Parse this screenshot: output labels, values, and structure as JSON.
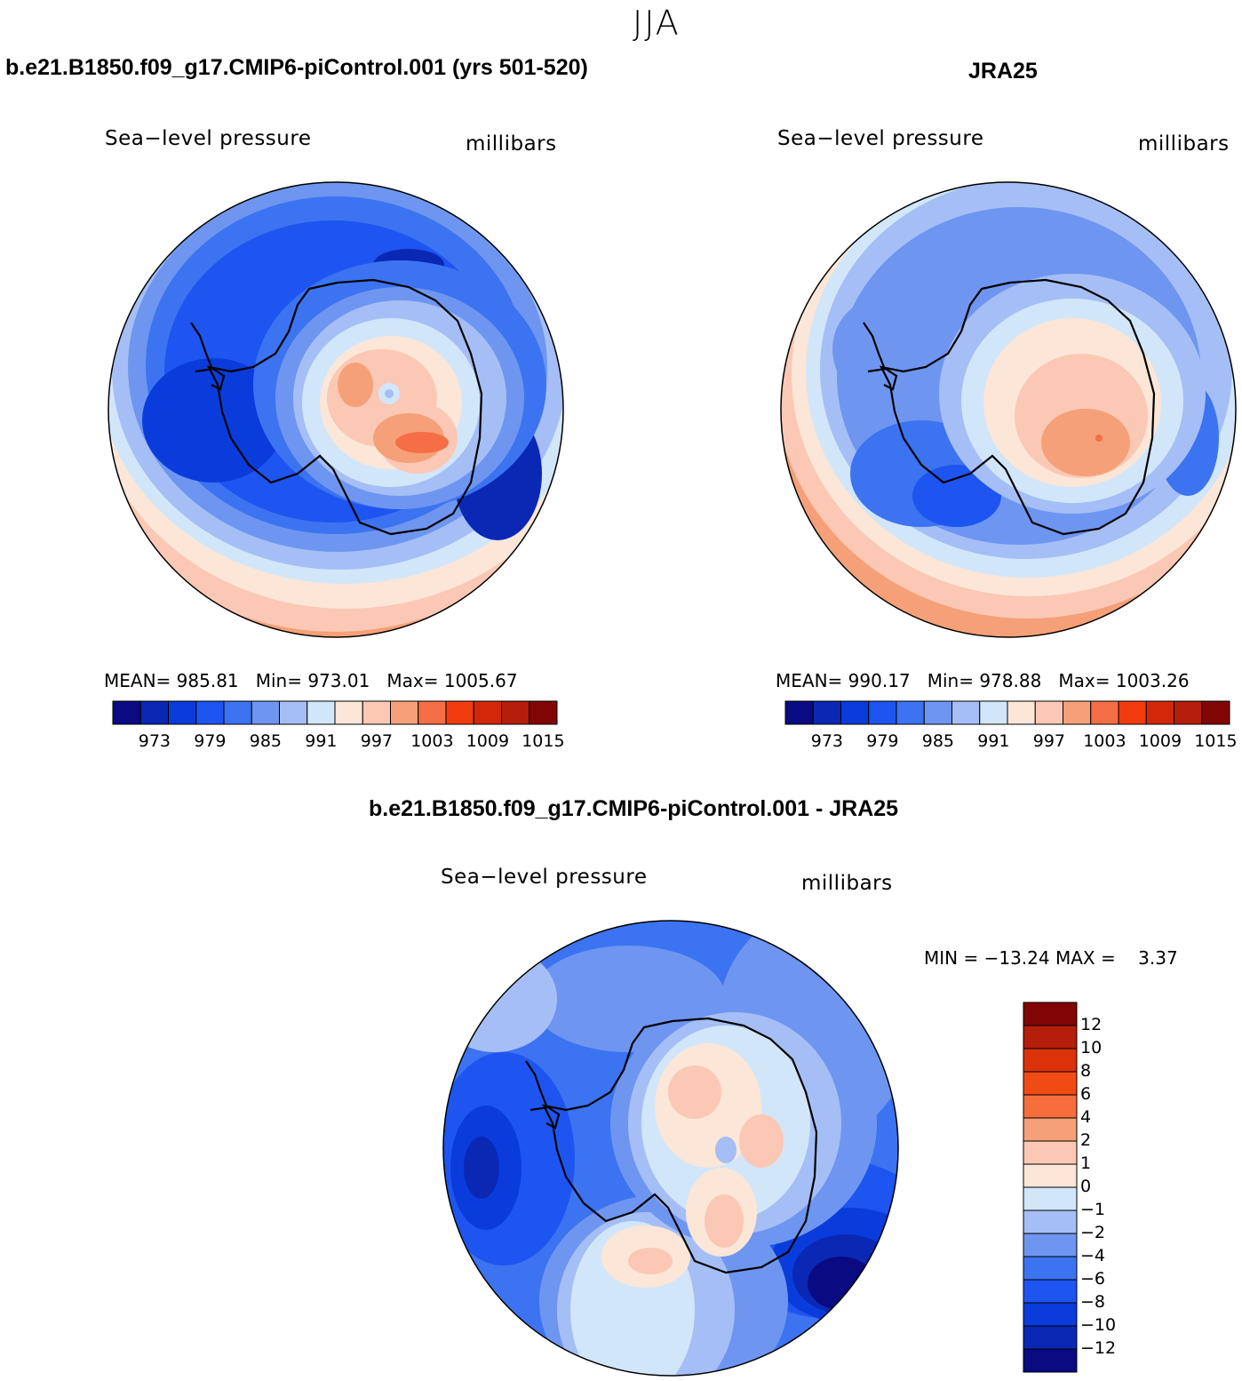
{
  "figure": {
    "title": "JJA"
  },
  "panels": [
    {
      "id": "model",
      "title": "b.e21.B1850.f09_g17.CMIP6-piControl.001 (yrs 501-520)",
      "left_label": "Sea−level pressure",
      "right_label": "millibars",
      "stats": {
        "mean_label": "MEAN=",
        "mean": "985.81",
        "min_label": "Min=",
        "min": "973.01",
        "max_label": "Max=",
        "max": "1005.67"
      },
      "colorbar_ticks": [
        "973",
        "979",
        "985",
        "991",
        "997",
        "1003",
        "1009",
        "1015"
      ]
    },
    {
      "id": "obs",
      "title": "JRA25",
      "left_label": "Sea−level pressure",
      "right_label": "millibars",
      "stats": {
        "mean_label": "MEAN=",
        "mean": "990.17",
        "min_label": "Min=",
        "min": "978.88",
        "max_label": "Max=",
        "max": "1003.26"
      },
      "colorbar_ticks": [
        "973",
        "979",
        "985",
        "991",
        "997",
        "1003",
        "1009",
        "1015"
      ]
    },
    {
      "id": "diff",
      "title": "b.e21.B1850.f09_g17.CMIP6-piControl.001 - JRA25",
      "left_label": "Sea−level pressure",
      "right_label": "millibars",
      "stats_text": "MIN = −13.24 MAX =    3.37",
      "colorbar_ticks": [
        "12",
        "10",
        "8",
        "6",
        "4",
        "2",
        "1",
        "0",
        "−1",
        "−2",
        "−4",
        "−6",
        "−8",
        "−10",
        "−12"
      ]
    }
  ],
  "colors": {
    "abs_scale": [
      "#0a0a82",
      "#0a28b4",
      "#0a3cdc",
      "#1e55f0",
      "#3c73f0",
      "#6e96f0",
      "#a5bef5",
      "#d2e6fa",
      "#fce6d7",
      "#fac8b4",
      "#f5a078",
      "#f56e46",
      "#f03c0f",
      "#d2280a",
      "#b41e0a",
      "#820505"
    ],
    "diff_scale": [
      "#820505",
      "#b41e0a",
      "#dc320a",
      "#f04b14",
      "#f56e3c",
      "#f5a078",
      "#fac8b4",
      "#fce6d7",
      "#d2e6fa",
      "#a5bef5",
      "#6e96f0",
      "#3c73f0",
      "#1e55f0",
      "#0a3cdc",
      "#0a28b4",
      "#0a0a82"
    ]
  }
}
